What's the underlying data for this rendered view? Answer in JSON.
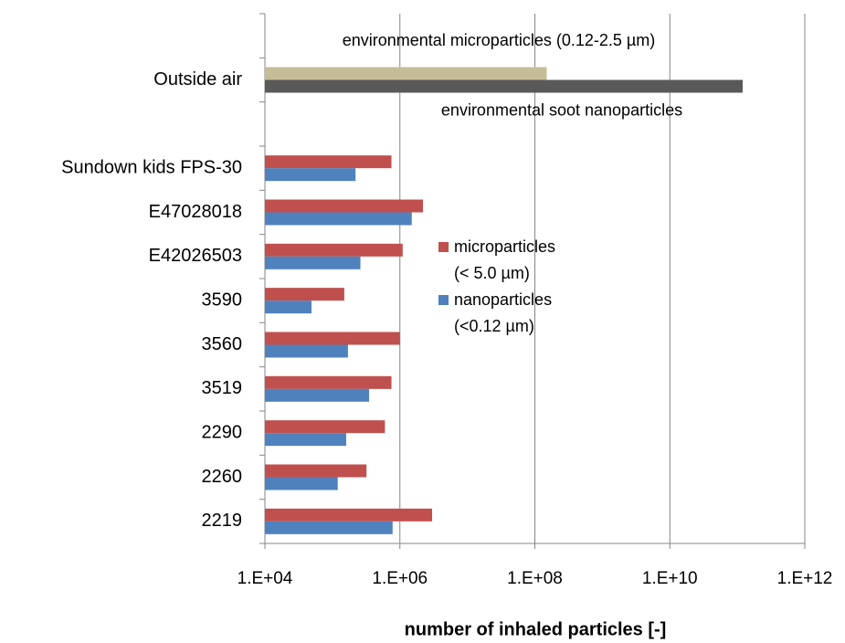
{
  "chart_data": {
    "type": "bar",
    "orientation": "horizontal",
    "categories": [
      null,
      "Outside air",
      null,
      "Sundown kids FPS-30",
      "E47028018",
      "E42026503",
      "3590",
      "3560",
      "3519",
      "2290",
      "2260",
      "2219"
    ],
    "series": [
      {
        "name": "microparticles\n(< 5.0  µm)",
        "color": "#c0504d",
        "colors": [
          null,
          "#c4bd97",
          null,
          "#c0504d",
          "#c0504d",
          "#c0504d",
          "#c0504d",
          "#c0504d",
          "#c0504d",
          "#c0504d",
          "#c0504d",
          "#c0504d"
        ],
        "values": [
          null,
          150000000,
          null,
          750000,
          2200000,
          1100000,
          150000,
          1000000,
          750000,
          600000,
          320000,
          3000000
        ]
      },
      {
        "name": "nanoparticles\n(<0.12 µm)",
        "color": "#4f81bd",
        "colors": [
          null,
          "#595959",
          null,
          "#4f81bd",
          "#4f81bd",
          "#4f81bd",
          "#4f81bd",
          "#4f81bd",
          "#4f81bd",
          "#4f81bd",
          "#4f81bd",
          "#4f81bd"
        ],
        "values": [
          null,
          120000000000,
          null,
          220000,
          1500000,
          260000,
          49000,
          170000,
          350000,
          160000,
          120000,
          780000
        ]
      }
    ],
    "annotations": [
      "environmental microparticles  (0.12-2.5 µm)",
      "environmental soot nanoparticles"
    ],
    "xlabel": "number of inhaled particles  [-]",
    "xlim": [
      10000,
      1000000000000
    ],
    "xticks": [
      {
        "value": 10000,
        "label": "1.E+04"
      },
      {
        "value": 1000000,
        "label": "1.E+06"
      },
      {
        "value": 100000000,
        "label": "1.E+08"
      },
      {
        "value": 10000000000,
        "label": "1.E+10"
      },
      {
        "value": 1000000000000,
        "label": "1.E+12"
      }
    ],
    "xscale": "log",
    "grid": true,
    "legend": "right"
  }
}
